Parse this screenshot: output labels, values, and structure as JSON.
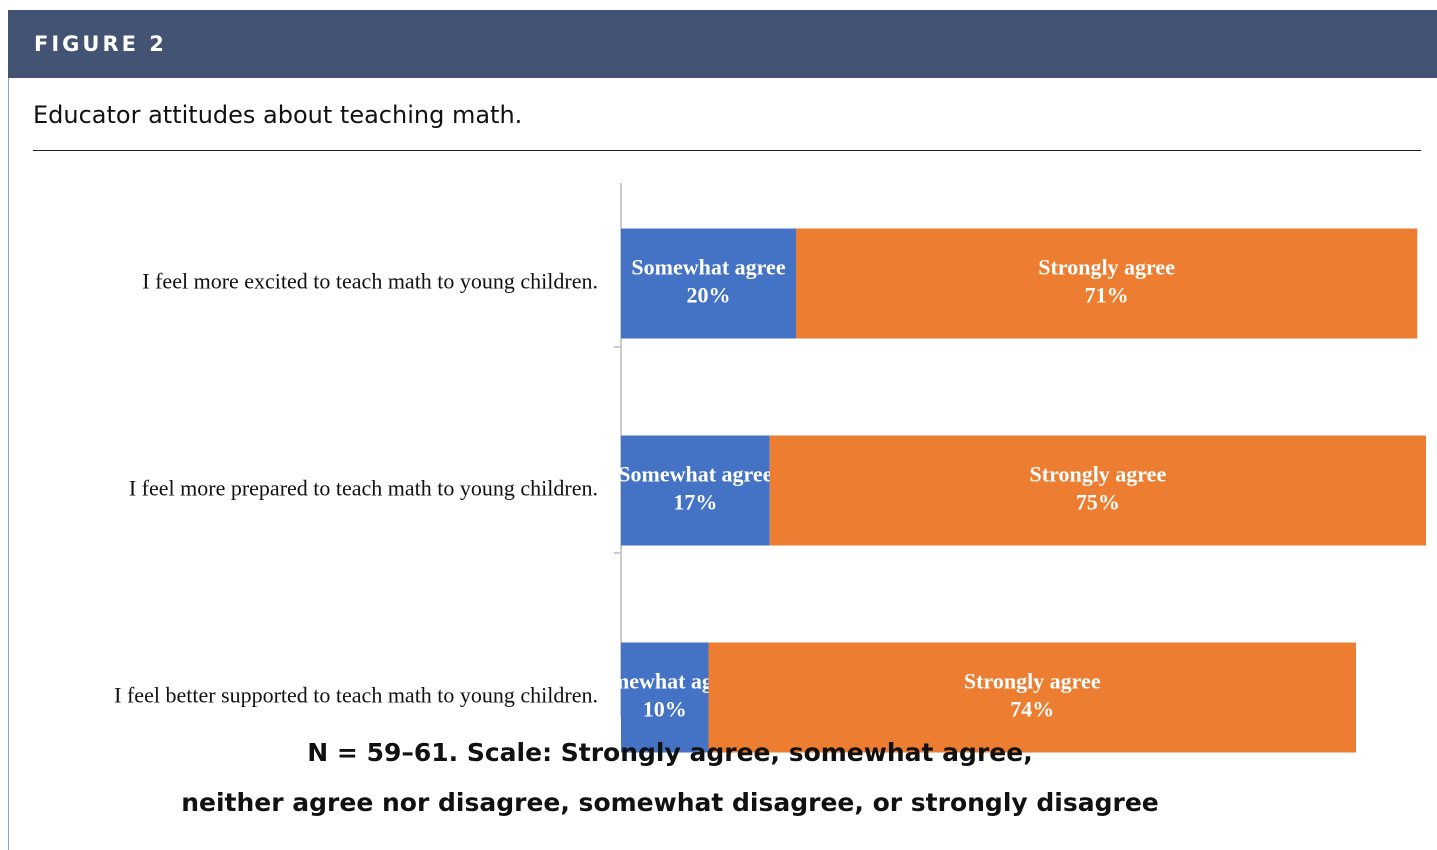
{
  "header": {
    "label": "FIGURE 2"
  },
  "chart_data": {
    "type": "stacked-bar-horizontal",
    "title": "Educator attitudes about teaching math.",
    "categories": [
      "I feel more excited to teach math to young children.",
      "I feel more prepared to teach math to young children.",
      "I feel better supported to teach math to young children."
    ],
    "series": [
      {
        "name": "Somewhat agree",
        "color": "#4472c4",
        "values": [
          20,
          17,
          10
        ],
        "value_labels": [
          "20%",
          "17%",
          "10%"
        ]
      },
      {
        "name": "Strongly agree",
        "color": "#ed7d31",
        "values": [
          71,
          75,
          74
        ],
        "value_labels": [
          "71%",
          "75%",
          "74%"
        ]
      }
    ],
    "xlim": [
      0,
      100
    ],
    "notes": [
      "N = 59–61. Scale: Strongly agree, somewhat agree,",
      "neither agree nor disagree, somewhat disagree, or strongly disagree"
    ]
  }
}
